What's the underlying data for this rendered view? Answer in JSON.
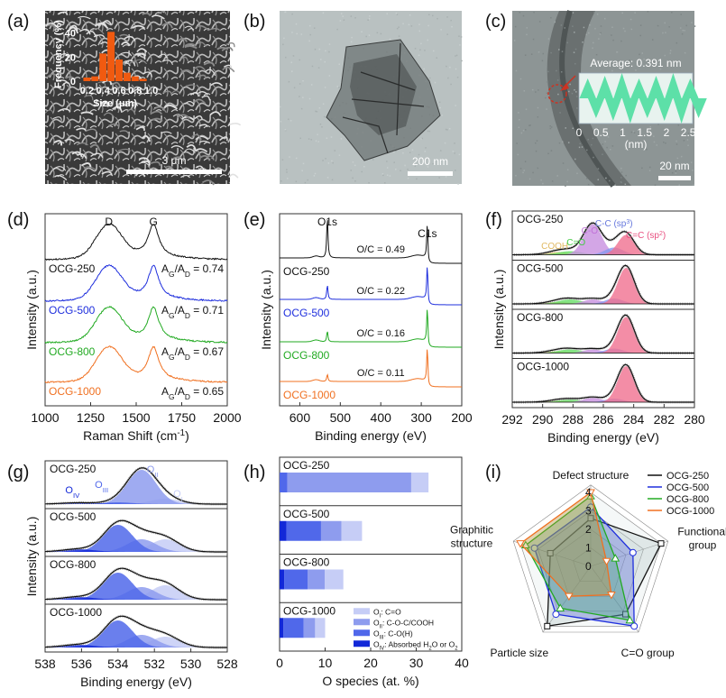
{
  "panel_labels": [
    "(a)",
    "(b)",
    "(c)",
    "(d)",
    "(e)",
    "(f)",
    "(g)",
    "(h)",
    "(i)"
  ],
  "colors": {
    "OCG-250": "#111111",
    "OCG-500": "#1f2fdd",
    "OCG-800": "#22aa22",
    "OCG-1000": "#f07020",
    "hist_bar": "#f05a10",
    "c_peaks": {
      "COOH": "#e8c070",
      "C=O": "#66dd66",
      "C-O": "#c890e0",
      "C-C (sp3)": "#8899ee",
      "C=C (sp2)": "#f07090"
    },
    "o_species": {
      "OI": "#c6cdf6",
      "OII": "#8e9cee",
      "OIII": "#5068ea",
      "OIV": "#1228d8"
    }
  },
  "chart_data": [
    {
      "panel": "a",
      "type": "bar",
      "title": "SEM image with size-distribution inset",
      "scale_bar": "3 μm",
      "xlabel": "Size (μm)",
      "ylabel": "Frequency (%)",
      "xticks": [
        "0.2",
        "0.4",
        "0.6",
        "0.8",
        "1.0"
      ],
      "yticks": [
        "0",
        "20",
        "40"
      ],
      "categories": [
        0.2,
        0.3,
        0.4,
        0.5,
        0.6,
        0.7,
        0.8,
        0.9
      ],
      "values": [
        3,
        4,
        23,
        41,
        18,
        7,
        4,
        2
      ],
      "ylim": [
        0,
        45
      ]
    },
    {
      "panel": "b",
      "type": "image",
      "title": "TEM image",
      "scale_bar": "200 nm"
    },
    {
      "panel": "c",
      "type": "line",
      "title": "HRTEM image with lattice profile inset",
      "scale_bar": "20 nm",
      "annotation": "Average: 0.391 nm",
      "xlabel": "(nm)",
      "xticks": [
        "0",
        "0.5",
        "1",
        "1.5",
        "2",
        "2.5"
      ],
      "xlim": [
        0,
        2.6
      ],
      "period": 0.391
    },
    {
      "panel": "d",
      "type": "line",
      "xlabel": "Raman Shift (cm-1)",
      "ylabel": "Intensity (a.u.)",
      "xticks": [
        "1000",
        "1250",
        "1500",
        "1750",
        "2000"
      ],
      "xlim": [
        1000,
        2000
      ],
      "peak_labels": [
        "D",
        "G"
      ],
      "series": [
        {
          "name": "OCG-250",
          "ratio_label": "AG/AD = 0.74",
          "ratio": 0.74
        },
        {
          "name": "OCG-500",
          "ratio_label": "AG/AD = 0.71",
          "ratio": 0.71
        },
        {
          "name": "OCG-800",
          "ratio_label": "AG/AD = 0.67",
          "ratio": 0.67
        },
        {
          "name": "OCG-1000",
          "ratio_label": "AG/AD = 0.65",
          "ratio": 0.65
        }
      ]
    },
    {
      "panel": "e",
      "type": "line",
      "xlabel": "Binding energy (eV)",
      "ylabel": "Intensity (a.u.)",
      "xticks": [
        "600",
        "500",
        "400",
        "300",
        "200"
      ],
      "xlim": [
        650,
        200
      ],
      "peak_labels": [
        "O1s",
        "C1s"
      ],
      "series": [
        {
          "name": "OCG-250",
          "ratio_label": "O/C = 0.49",
          "ratio": 0.49
        },
        {
          "name": "OCG-500",
          "ratio_label": "O/C = 0.22",
          "ratio": 0.22
        },
        {
          "name": "OCG-800",
          "ratio_label": "O/C = 0.16",
          "ratio": 0.16
        },
        {
          "name": "OCG-1000",
          "ratio_label": "O/C = 0.11",
          "ratio": 0.11
        }
      ]
    },
    {
      "panel": "f",
      "type": "area",
      "xlabel": "Binding energy (eV)",
      "ylabel": "Intensity (a.u.)",
      "xticks": [
        "292",
        "290",
        "288",
        "286",
        "284",
        "282",
        "280"
      ],
      "xlim": [
        292,
        280
      ],
      "component_labels": [
        "COOH",
        "C=O",
        "C-O",
        "C-C (sp3)",
        "C=C (sp2)"
      ],
      "samples": [
        "OCG-250",
        "OCG-500",
        "OCG-800",
        "OCG-1000"
      ]
    },
    {
      "panel": "g",
      "type": "area",
      "xlabel": "Binding energy (eV)",
      "ylabel": "Intensity (a.u.)",
      "xticks": [
        "538",
        "536",
        "534",
        "532",
        "530",
        "528"
      ],
      "xlim": [
        538,
        528
      ],
      "component_labels": [
        "OIV",
        "OIII",
        "OII",
        "OI"
      ],
      "samples": [
        "OCG-250",
        "OCG-500",
        "OCG-800",
        "OCG-1000"
      ]
    },
    {
      "panel": "h",
      "type": "bar",
      "orientation": "horizontal-stacked",
      "xlabel": "O species (at. %)",
      "xticks": [
        "0",
        "10",
        "20",
        "30",
        "40"
      ],
      "xlim": [
        0,
        40
      ],
      "categories": [
        "OCG-250",
        "OCG-500",
        "OCG-800",
        "OCG-1000"
      ],
      "series": [
        {
          "name": "OIV: Absorbed H2O or O2",
          "key": "OIV",
          "values": [
            0,
            1.5,
            1,
            0.8
          ]
        },
        {
          "name": "OIII: C-O(H)",
          "key": "OIII",
          "values": [
            1.7,
            7.6,
            5.2,
            4.5
          ]
        },
        {
          "name": "OII: C-O-C/COOH",
          "key": "OII",
          "values": [
            27.2,
            4.5,
            3.7,
            2.5
          ]
        },
        {
          "name": "OI: C=O",
          "key": "OI",
          "values": [
            3.8,
            4.5,
            4.1,
            2.2
          ]
        }
      ],
      "legend_position": "bottom-right"
    },
    {
      "panel": "i",
      "type": "radar",
      "axes": [
        "Defect structure",
        "Functional group",
        "C=O group",
        "Particle size",
        "Graphitic structure"
      ],
      "rticks": [
        "0",
        "1",
        "2",
        "3",
        "4"
      ],
      "rlim": [
        0,
        4
      ],
      "series": [
        {
          "name": "OCG-250",
          "values": [
            2.6,
            4,
            3.2,
            4,
            2.3
          ]
        },
        {
          "name": "OCG-500",
          "values": [
            3.2,
            2.4,
            4,
            3.2,
            3.2
          ]
        },
        {
          "name": "OCG-800",
          "values": [
            3.8,
            1.4,
            3.6,
            2.8,
            3.7
          ]
        },
        {
          "name": "OCG-1000",
          "values": [
            4,
            0.9,
            1.9,
            2.0,
            4
          ]
        }
      ],
      "legend_position": "top-right"
    }
  ]
}
